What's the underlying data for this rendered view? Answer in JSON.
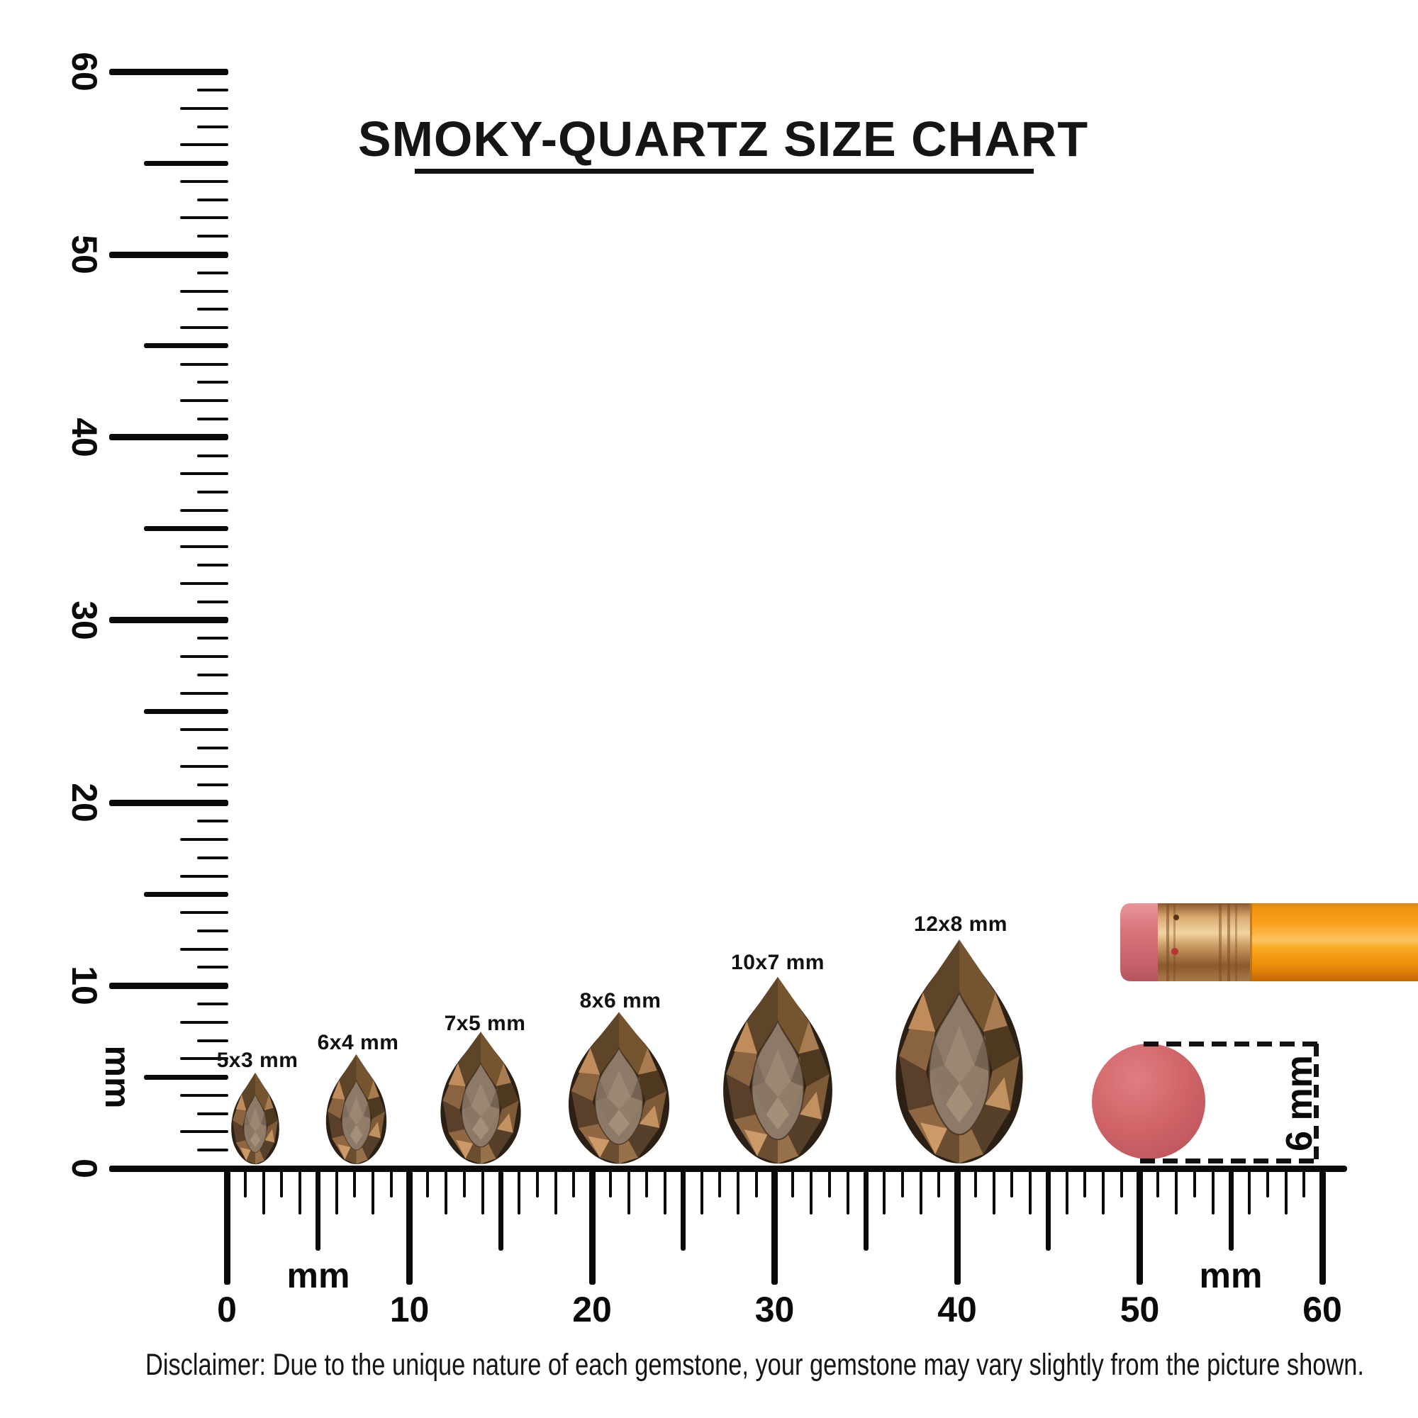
{
  "title": {
    "text": "SMOKY-QUARTZ SIZE CHART"
  },
  "left_ruler": {
    "unit_label": "mm",
    "tick_labels": [
      "0",
      "10",
      "20",
      "30",
      "40",
      "50",
      "60"
    ],
    "range_mm": [
      0,
      60
    ]
  },
  "bottom_ruler": {
    "unit_label_left": "mm",
    "unit_label_right": "mm",
    "tick_labels": [
      "0",
      "10",
      "20",
      "30",
      "40",
      "50",
      "60"
    ],
    "range_mm": [
      0,
      60
    ]
  },
  "gems": [
    {
      "label": "5x3 mm",
      "length_mm": 5,
      "width_mm": 3,
      "shape": "pear"
    },
    {
      "label": "6x4 mm",
      "length_mm": 6,
      "width_mm": 4,
      "shape": "pear"
    },
    {
      "label": "7x5 mm",
      "length_mm": 7,
      "width_mm": 5,
      "shape": "pear"
    },
    {
      "label": "8x6 mm",
      "length_mm": 8,
      "width_mm": 6,
      "shape": "pear"
    },
    {
      "label": "10x7 mm",
      "length_mm": 10,
      "width_mm": 7,
      "shape": "pear"
    },
    {
      "label": "12x8 mm",
      "length_mm": 12,
      "width_mm": 8,
      "shape": "pear"
    }
  ],
  "scale_objects": {
    "pencil": "pencil-with-eraser",
    "dot_diameter_label": "6 mm"
  },
  "disclaimer": "Disclaimer: Due to the unique nature of each gemstone, your gemstone may vary slightly from the picture shown.",
  "colors": {
    "ink": "#0a0a0a",
    "gem_dark": "#2c2015",
    "gem_mid": "#7d5a38",
    "gem_light": "#c08c5c",
    "gem_table": "#8d7968",
    "pencil_body": "#f79b17",
    "pencil_ferrule": "#c99a62",
    "pencil_eraser": "#d8747b",
    "dot_pink": "#d06468"
  }
}
